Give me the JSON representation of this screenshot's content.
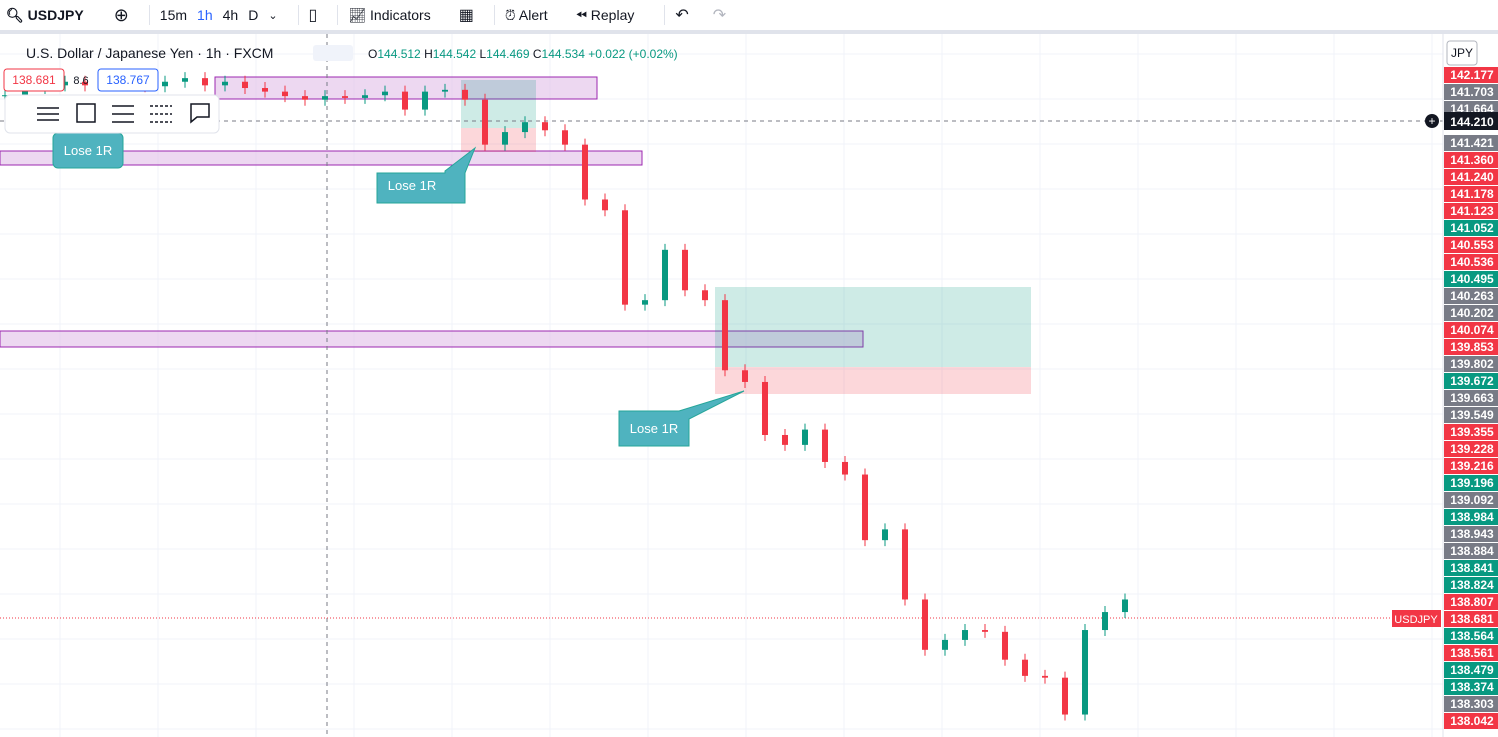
{
  "toolbar": {
    "symbol": "USDJPY",
    "intervals": [
      "15m",
      "1h",
      "4h",
      "D"
    ],
    "indicators": "Indicators",
    "alert": "Alert",
    "replay": "Replay"
  },
  "legend": {
    "title": "U.S. Dollar / Japanese Yen · 1h · FXCM",
    "open": "144.512",
    "high": "144.542",
    "low": "144.469",
    "close": "144.534",
    "change": "+0.022 (+0.02%)"
  },
  "order": {
    "sell": "138.681",
    "spread": "8.6",
    "buy": "138.767"
  },
  "annotations": [
    "Lose 1R",
    "Lose 1R",
    "Lose 1R"
  ],
  "axis": {
    "currency": "JPY",
    "crosshair": "144.210",
    "symbol_tag": "USDJPY",
    "labels": [
      {
        "text": "142.177",
        "color": "#f23645"
      },
      {
        "text": "141.703",
        "color": "#787b86"
      },
      {
        "text": "141.664",
        "color": "#787b86"
      },
      {
        "text": "141.421",
        "color": "#787b86"
      },
      {
        "text": "141.360",
        "color": "#f23645"
      },
      {
        "text": "141.240",
        "color": "#f23645"
      },
      {
        "text": "141.178",
        "color": "#f23645"
      },
      {
        "text": "141.123",
        "color": "#f23645"
      },
      {
        "text": "141.052",
        "color": "#089981"
      },
      {
        "text": "140.553",
        "color": "#f23645"
      },
      {
        "text": "140.536",
        "color": "#f23645"
      },
      {
        "text": "140.495",
        "color": "#089981"
      },
      {
        "text": "140.263",
        "color": "#787b86"
      },
      {
        "text": "140.202",
        "color": "#787b86"
      },
      {
        "text": "140.074",
        "color": "#f23645"
      },
      {
        "text": "139.853",
        "color": "#f23645"
      },
      {
        "text": "139.802",
        "color": "#787b86"
      },
      {
        "text": "139.672",
        "color": "#089981"
      },
      {
        "text": "139.663",
        "color": "#787b86"
      },
      {
        "text": "139.549",
        "color": "#787b86"
      },
      {
        "text": "139.355",
        "color": "#f23645"
      },
      {
        "text": "139.228",
        "color": "#f23645"
      },
      {
        "text": "139.216",
        "color": "#f23645"
      },
      {
        "text": "139.196",
        "color": "#089981"
      },
      {
        "text": "139.092",
        "color": "#787b86"
      },
      {
        "text": "138.984",
        "color": "#089981"
      },
      {
        "text": "138.943",
        "color": "#787b86"
      },
      {
        "text": "138.884",
        "color": "#787b86"
      },
      {
        "text": "138.841",
        "color": "#089981"
      },
      {
        "text": "138.824",
        "color": "#089981"
      },
      {
        "text": "138.807",
        "color": "#f23645"
      },
      {
        "text": "138.681",
        "color": "#f23645"
      },
      {
        "text": "138.564",
        "color": "#089981"
      },
      {
        "text": "138.561",
        "color": "#f23645"
      },
      {
        "text": "138.479",
        "color": "#089981"
      },
      {
        "text": "138.374",
        "color": "#089981"
      },
      {
        "text": "138.303",
        "color": "#787b86"
      },
      {
        "text": "138.042",
        "color": "#f23645"
      }
    ]
  },
  "chart": {
    "ylim": [
      137.36,
      145.17
    ],
    "up_color": "#089981",
    "down_color": "#f23645",
    "closes": [
      144.5,
      144.58,
      144.61,
      144.65,
      144.61,
      144.67,
      144.63,
      144.6,
      144.65,
      144.69,
      144.61,
      144.65,
      144.58,
      144.54,
      144.49,
      144.45,
      144.49,
      144.47,
      144.5,
      144.54,
      144.34,
      144.54,
      144.56,
      144.45,
      143.95,
      144.09,
      144.2,
      144.11,
      143.95,
      143.34,
      143.22,
      142.17,
      142.22,
      142.78,
      142.33,
      142.22,
      141.44,
      141.31,
      140.72,
      140.61,
      140.78,
      140.42,
      140.28,
      139.55,
      139.67,
      138.89,
      138.33,
      138.44,
      138.55,
      138.53,
      138.22,
      138.04,
      138.02,
      137.61,
      138.55,
      138.75,
      138.89
    ]
  }
}
